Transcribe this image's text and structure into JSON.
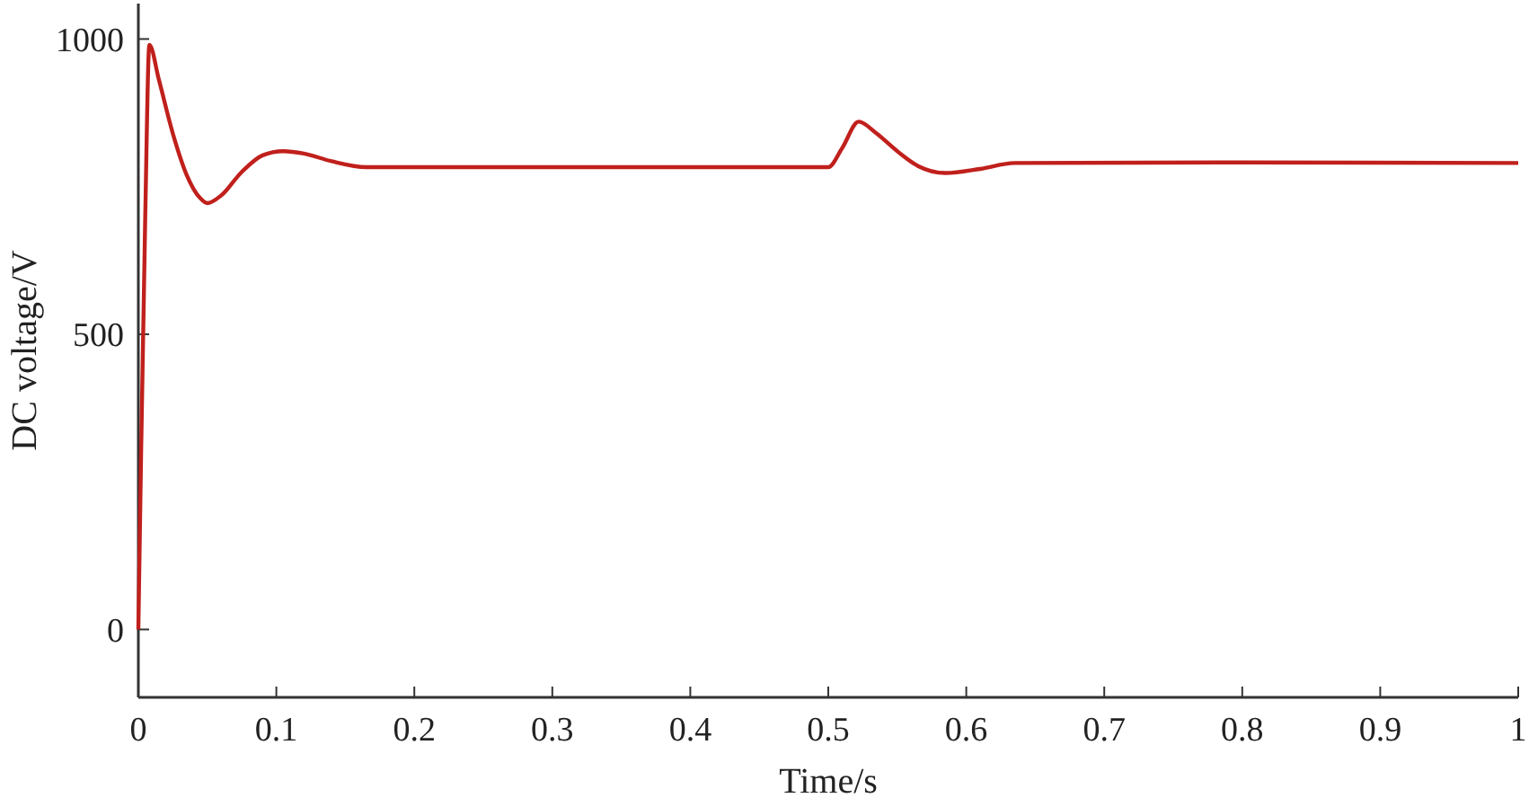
{
  "chart_data": {
    "type": "line",
    "xlabel": "Time/s",
    "ylabel": "DC voltage/V",
    "xlim": [
      0,
      1
    ],
    "xticks": [
      0,
      0.1,
      0.2,
      0.3,
      0.4,
      0.5,
      0.6,
      0.7,
      0.8,
      0.9,
      1
    ],
    "ylim": [
      -115,
      1060
    ],
    "yticks": [
      0,
      500,
      1000
    ],
    "grid": false,
    "series": [
      {
        "color": "#c0201c",
        "x": [
          0,
          0.002,
          0.005,
          0.008,
          0.015,
          0.025,
          0.035,
          0.045,
          0.05,
          0.06,
          0.075,
          0.09,
          0.105,
          0.12,
          0.14,
          0.165,
          0.2,
          0.3,
          0.4,
          0.5,
          0.51,
          0.522,
          0.535,
          0.55,
          0.565,
          0.585,
          0.61,
          0.635,
          0.8,
          1
        ],
        "values": [
          0,
          300,
          700,
          990,
          930,
          840,
          770,
          730,
          722,
          735,
          775,
          803,
          810,
          806,
          793,
          783,
          783,
          783,
          783,
          783,
          815,
          860,
          840,
          810,
          785,
          773,
          780,
          790,
          791,
          790
        ]
      }
    ]
  }
}
